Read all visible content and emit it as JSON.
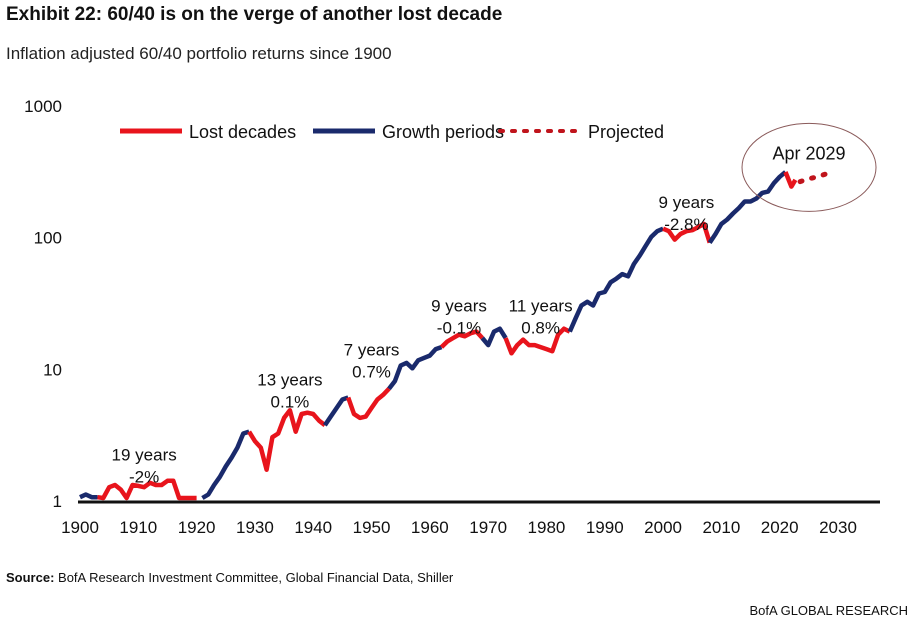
{
  "header": {
    "title": "Exhibit 22: 60/40 is on the verge of another lost decade",
    "subtitle": "Inflation adjusted 60/40 portfolio returns since 1900"
  },
  "footer": {
    "source_label": "Source:",
    "source_text": "BofA Research Investment Committee, Global Financial Data, Shiller",
    "brand": "BofA GLOBAL RESEARCH"
  },
  "chart_data": {
    "type": "line",
    "title": "Exhibit 22: 60/40 is on the verge of another lost decade",
    "subtitle": "Inflation adjusted 60/40 portfolio returns since 1900",
    "xlabel": "",
    "ylabel": "",
    "xlim": [
      1900,
      2030
    ],
    "ylim": [
      1,
      1000
    ],
    "yscale": "log",
    "xticks": [
      "1900",
      "1910",
      "1920",
      "1930",
      "1940",
      "1950",
      "1960",
      "1970",
      "1980",
      "1990",
      "2000",
      "2010",
      "2020",
      "2030"
    ],
    "yticks": [
      "1",
      "10",
      "100",
      "1000"
    ],
    "grid": false,
    "legend_position": "top",
    "colors": {
      "lost": "#e8141c",
      "growth": "#1a2a6c",
      "projected": "#c0141c"
    },
    "legend": [
      {
        "key": "lost",
        "label": "Lost decades"
      },
      {
        "key": "growth",
        "label": "Growth periods"
      },
      {
        "key": "projected",
        "label": "Projected"
      }
    ],
    "segments": [
      {
        "kind": "growth",
        "points": [
          [
            1900,
            1.05
          ],
          [
            1901,
            1.1
          ],
          [
            1902,
            1.05
          ],
          [
            1903,
            1.05
          ]
        ]
      },
      {
        "kind": "lost",
        "points": [
          [
            1903,
            1.05
          ],
          [
            1904,
            0.98
          ],
          [
            1905,
            1.25
          ],
          [
            1906,
            1.3
          ],
          [
            1907,
            1.2
          ],
          [
            1908,
            1.0
          ],
          [
            1909,
            1.3
          ],
          [
            1910,
            1.28
          ],
          [
            1911,
            1.25
          ],
          [
            1912,
            1.35
          ],
          [
            1913,
            1.3
          ],
          [
            1914,
            1.3
          ],
          [
            1915,
            1.4
          ],
          [
            1916,
            1.4
          ],
          [
            1917,
            1.0
          ],
          [
            1918,
            0.97
          ],
          [
            1919,
            0.98
          ],
          [
            1920,
            0.96
          ]
        ]
      },
      {
        "kind": "growth",
        "points": [
          [
            1921,
            1.0
          ],
          [
            1922,
            1.1
          ],
          [
            1923,
            1.3
          ],
          [
            1924,
            1.5
          ],
          [
            1925,
            1.8
          ],
          [
            1926,
            2.1
          ],
          [
            1927,
            2.5
          ],
          [
            1928,
            3.2
          ],
          [
            1929,
            3.3
          ]
        ]
      },
      {
        "kind": "lost",
        "points": [
          [
            1929,
            3.3
          ],
          [
            1930,
            2.8
          ],
          [
            1931,
            2.5
          ],
          [
            1932,
            1.7
          ],
          [
            1933,
            3.0
          ],
          [
            1934,
            3.2
          ],
          [
            1935,
            4.2
          ],
          [
            1936,
            4.8
          ],
          [
            1937,
            3.3
          ],
          [
            1938,
            4.5
          ],
          [
            1939,
            4.6
          ],
          [
            1940,
            4.5
          ],
          [
            1941,
            4.0
          ],
          [
            1942,
            3.7
          ]
        ]
      },
      {
        "kind": "growth",
        "points": [
          [
            1942,
            3.7
          ],
          [
            1943,
            4.3
          ],
          [
            1944,
            5.0
          ],
          [
            1945,
            5.8
          ],
          [
            1946,
            6.0
          ]
        ]
      },
      {
        "kind": "lost",
        "points": [
          [
            1946,
            6.0
          ],
          [
            1947,
            4.5
          ],
          [
            1948,
            4.2
          ],
          [
            1949,
            4.3
          ],
          [
            1950,
            5.0
          ],
          [
            1951,
            5.8
          ],
          [
            1952,
            6.3
          ],
          [
            1953,
            7.0
          ]
        ]
      },
      {
        "kind": "growth",
        "points": [
          [
            1953,
            7.0
          ],
          [
            1954,
            8
          ],
          [
            1955,
            10.5
          ],
          [
            1956,
            11
          ],
          [
            1957,
            10
          ],
          [
            1958,
            11.5
          ],
          [
            1959,
            12
          ],
          [
            1960,
            12.5
          ],
          [
            1961,
            14
          ],
          [
            1962,
            14.5
          ]
        ]
      },
      {
        "kind": "lost",
        "points": [
          [
            1962,
            14.5
          ],
          [
            1963,
            16
          ],
          [
            1964,
            17
          ],
          [
            1965,
            18
          ],
          [
            1966,
            17.5
          ],
          [
            1967,
            18.5
          ],
          [
            1968,
            19
          ],
          [
            1969,
            17
          ]
        ]
      },
      {
        "kind": "growth",
        "points": [
          [
            1969,
            17
          ],
          [
            1970,
            15
          ],
          [
            1971,
            19
          ],
          [
            1972,
            20
          ],
          [
            1973,
            17
          ]
        ]
      },
      {
        "kind": "lost",
        "points": [
          [
            1973,
            17
          ],
          [
            1974,
            13
          ],
          [
            1975,
            15
          ],
          [
            1976,
            16.5
          ],
          [
            1977,
            15
          ],
          [
            1978,
            15
          ],
          [
            1979,
            14.5
          ],
          [
            1980,
            14
          ],
          [
            1981,
            13.5
          ],
          [
            1982,
            18
          ],
          [
            1983,
            20
          ],
          [
            1984,
            19
          ]
        ]
      },
      {
        "kind": "growth",
        "points": [
          [
            1984,
            19
          ],
          [
            1985,
            24
          ],
          [
            1986,
            30
          ],
          [
            1987,
            32
          ],
          [
            1988,
            30
          ],
          [
            1989,
            37
          ],
          [
            1990,
            38
          ],
          [
            1991,
            45
          ],
          [
            1992,
            48
          ],
          [
            1993,
            52
          ],
          [
            1994,
            50
          ],
          [
            1995,
            62
          ],
          [
            1996,
            72
          ],
          [
            1997,
            85
          ],
          [
            1998,
            100
          ],
          [
            1999,
            110
          ],
          [
            2000,
            115
          ]
        ]
      },
      {
        "kind": "lost",
        "points": [
          [
            2000,
            115
          ],
          [
            2001,
            110
          ],
          [
            2002,
            95
          ],
          [
            2003,
            105
          ],
          [
            2004,
            110
          ],
          [
            2005,
            112
          ],
          [
            2006,
            118
          ],
          [
            2007,
            125
          ],
          [
            2008,
            90
          ]
        ]
      },
      {
        "kind": "growth",
        "points": [
          [
            2008,
            90
          ],
          [
            2009,
            105
          ],
          [
            2010,
            125
          ],
          [
            2011,
            135
          ],
          [
            2012,
            150
          ],
          [
            2013,
            165
          ],
          [
            2014,
            185
          ],
          [
            2015,
            185
          ],
          [
            2016,
            195
          ],
          [
            2017,
            215
          ],
          [
            2018,
            220
          ],
          [
            2019,
            255
          ],
          [
            2020,
            285
          ],
          [
            2021,
            310
          ]
        ]
      },
      {
        "kind": "lost",
        "points": [
          [
            2021,
            310
          ],
          [
            2022,
            240
          ],
          [
            2022.7,
            270
          ]
        ]
      },
      {
        "kind": "projected",
        "points": [
          [
            2023.5,
            262
          ],
          [
            2025,
            275
          ],
          [
            2026.5,
            285
          ],
          [
            2028,
            300
          ]
        ]
      }
    ],
    "annotations": [
      {
        "lines": [
          "19 years",
          "-2%"
        ],
        "x": 1911,
        "y": 2.0
      },
      {
        "lines": [
          "13 years",
          "0.1%"
        ],
        "x": 1936,
        "y": 7.4
      },
      {
        "lines": [
          "7 years",
          "0.7%"
        ],
        "x": 1950,
        "y": 12.5
      },
      {
        "lines": [
          "9 years",
          "-0.1%"
        ],
        "x": 1965,
        "y": 27
      },
      {
        "lines": [
          "11 years",
          "0.8%"
        ],
        "x": 1979,
        "y": 27
      },
      {
        "lines": [
          "9 years",
          "-2.8%"
        ],
        "x": 2004,
        "y": 165
      }
    ],
    "callout": {
      "label": "Apr 2029",
      "x": 2024,
      "y": 400
    }
  }
}
